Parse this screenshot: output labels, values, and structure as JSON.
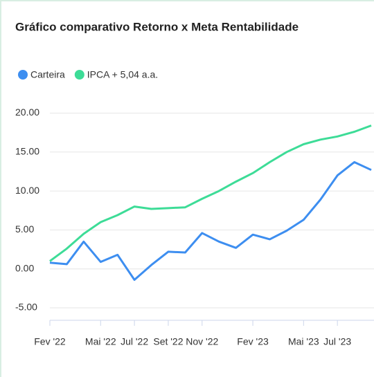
{
  "chart_data": {
    "type": "line",
    "title": "Gráfico comparativo Retorno x Meta Rentabilidade",
    "categories": [
      "Fev '22",
      null,
      null,
      "Mai '22",
      null,
      "Jul '22",
      null,
      "Set '22",
      null,
      "Nov '22",
      null,
      null,
      "Fev '23",
      null,
      null,
      "Mai '23",
      null,
      "Jul '23",
      null,
      null
    ],
    "series": [
      {
        "name": "Carteira",
        "color": "#3d8ef0",
        "values": [
          0.8,
          0.6,
          3.5,
          0.9,
          1.8,
          -1.4,
          0.5,
          2.2,
          2.1,
          4.6,
          3.5,
          2.7,
          4.4,
          3.8,
          4.9,
          6.3,
          8.9,
          12.0,
          13.7,
          12.7
        ]
      },
      {
        "name": "IPCA + 5,04 a.a.",
        "color": "#3ddc97",
        "values": [
          1.0,
          2.6,
          4.5,
          6.0,
          6.9,
          8.0,
          7.7,
          7.8,
          7.9,
          9.0,
          10.0,
          11.2,
          12.3,
          13.7,
          15.0,
          16.0,
          16.6,
          17.0,
          17.6,
          18.4
        ]
      }
    ],
    "ylim": [
      -6.6,
      21.2
    ],
    "yticks": [
      {
        "value": -5,
        "label": "-5.00"
      },
      {
        "value": 0,
        "label": "0.00"
      },
      {
        "value": 5,
        "label": "5.00"
      },
      {
        "value": 10,
        "label": "10.00"
      },
      {
        "value": 15,
        "label": "15.00"
      },
      {
        "value": 20,
        "label": "20.00"
      }
    ],
    "grid": true
  }
}
